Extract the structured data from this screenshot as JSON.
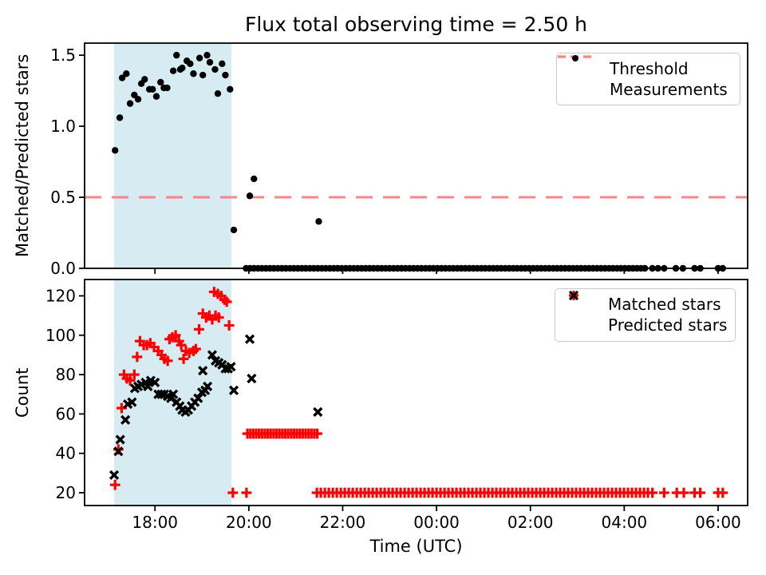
{
  "figure": {
    "title": "Flux total observing time = 2.50 h",
    "time_note": "x values are decimal hours UTC; values >= 24 are past midnight"
  },
  "colors": {
    "measurement": "#000000",
    "threshold": "#fb8585",
    "matched": "#ff0000",
    "predicted": "#000000",
    "observing_window_fill": "#add8e6",
    "spine": "#000000",
    "legend_border": "#cccccc"
  },
  "legend_top": {
    "items": [
      {
        "label": "Threshold"
      },
      {
        "label": "Measurements"
      }
    ]
  },
  "legend_bottom": {
    "items": [
      {
        "label": "Matched stars"
      },
      {
        "label": "Predicted stars"
      }
    ]
  },
  "chart_data": [
    {
      "type": "scatter",
      "title": "Flux total observing time = 2.50 h",
      "ylabel": "Matched/Predicted stars",
      "xlim": [
        16.5,
        30.63
      ],
      "ylim": [
        0,
        1.585
      ],
      "grid": false,
      "legend_position": "upper right",
      "xticks": {
        "hours": [
          18,
          20,
          22,
          24,
          26,
          28,
          30
        ],
        "labels": [
          "18:00",
          "20:00",
          "22:00",
          "00:00",
          "02:00",
          "04:00",
          "06:00"
        ],
        "show_labels": false
      },
      "yticks": {
        "values": [
          0.0,
          0.5,
          1.0,
          1.5
        ],
        "labels": [
          "0.0",
          "0.5",
          "1.0",
          "1.5"
        ]
      },
      "threshold_value": 0.5,
      "observing_window_hours": [
        17.13,
        19.63
      ],
      "series": [
        {
          "name": "Measurements",
          "marker": "dot",
          "color": "#000000",
          "points": [
            [
              17.15,
              0.83
            ],
            [
              17.25,
              1.06
            ],
            [
              17.3,
              1.34
            ],
            [
              17.39,
              1.37
            ],
            [
              17.47,
              1.16
            ],
            [
              17.56,
              1.22
            ],
            [
              17.64,
              1.19
            ],
            [
              17.71,
              1.3
            ],
            [
              17.78,
              1.33
            ],
            [
              17.88,
              1.26
            ],
            [
              17.95,
              1.26
            ],
            [
              18.03,
              1.21
            ],
            [
              18.12,
              1.31
            ],
            [
              18.19,
              1.27
            ],
            [
              18.26,
              1.27
            ],
            [
              18.39,
              1.39
            ],
            [
              18.46,
              1.5
            ],
            [
              18.54,
              1.4
            ],
            [
              18.58,
              1.41
            ],
            [
              18.68,
              1.46
            ],
            [
              18.75,
              1.44
            ],
            [
              18.82,
              1.37
            ],
            [
              18.95,
              1.48
            ],
            [
              19.02,
              1.36
            ],
            [
              19.11,
              1.5
            ],
            [
              19.17,
              1.45
            ],
            [
              19.28,
              1.4
            ],
            [
              19.34,
              1.23
            ],
            [
              19.43,
              1.44
            ],
            [
              19.5,
              1.36
            ],
            [
              19.6,
              1.26
            ],
            [
              19.68,
              0.27
            ],
            [
              20.02,
              0.51
            ],
            [
              20.11,
              0.63
            ],
            [
              21.49,
              0.33
            ]
          ],
          "runs": [
            {
              "start": 19.94,
              "end": 28.47,
              "step": 0.085,
              "value": 0.0
            }
          ],
          "extra_points": [
            [
              28.6,
              0.0
            ],
            [
              28.72,
              0.0
            ],
            [
              28.85,
              0.0
            ],
            [
              29.1,
              0.0
            ],
            [
              29.25,
              0.0
            ],
            [
              29.5,
              0.0
            ],
            [
              29.62,
              0.0
            ],
            [
              30.0,
              0.0
            ],
            [
              30.1,
              0.0
            ]
          ]
        }
      ]
    },
    {
      "type": "scatter",
      "ylabel": "Count",
      "xlabel": "Time (UTC)",
      "xlim": [
        16.5,
        30.63
      ],
      "ylim": [
        13.5,
        128.3
      ],
      "grid": false,
      "legend_position": "upper right",
      "xticks": {
        "hours": [
          18,
          20,
          22,
          24,
          26,
          28,
          30
        ],
        "labels": [
          "18:00",
          "20:00",
          "22:00",
          "00:00",
          "02:00",
          "04:00",
          "06:00"
        ],
        "show_labels": true
      },
      "yticks": {
        "values": [
          20,
          40,
          60,
          80,
          100,
          120
        ],
        "labels": [
          "20",
          "40",
          "60",
          "80",
          "100",
          "120"
        ]
      },
      "observing_window_hours": [
        17.13,
        19.63
      ],
      "series": [
        {
          "name": "Matched stars",
          "marker": "plus",
          "color": "#ff0000",
          "points": [
            [
              17.15,
              24
            ],
            [
              17.22,
              42
            ],
            [
              17.29,
              63
            ],
            [
              17.34,
              80
            ],
            [
              17.4,
              78
            ],
            [
              17.47,
              77
            ],
            [
              17.56,
              80
            ],
            [
              17.62,
              89
            ],
            [
              17.68,
              97
            ],
            [
              17.76,
              95
            ],
            [
              17.83,
              95
            ],
            [
              17.9,
              96
            ],
            [
              17.98,
              94
            ],
            [
              18.07,
              92
            ],
            [
              18.14,
              90
            ],
            [
              18.2,
              88
            ],
            [
              18.27,
              87
            ],
            [
              18.31,
              98
            ],
            [
              18.37,
              99
            ],
            [
              18.44,
              100
            ],
            [
              18.51,
              97
            ],
            [
              18.56,
              95
            ],
            [
              18.61,
              88
            ],
            [
              18.66,
              92
            ],
            [
              18.73,
              91
            ],
            [
              18.82,
              92
            ],
            [
              18.87,
              93
            ],
            [
              18.94,
              103
            ],
            [
              19.02,
              111
            ],
            [
              19.09,
              109
            ],
            [
              19.16,
              110
            ],
            [
              19.22,
              108
            ],
            [
              19.29,
              110
            ],
            [
              19.36,
              109
            ],
            [
              19.26,
              122
            ],
            [
              19.34,
              121
            ],
            [
              19.41,
              120
            ],
            [
              19.48,
              118
            ],
            [
              19.53,
              117
            ],
            [
              19.58,
              105
            ],
            [
              19.66,
              20
            ],
            [
              19.95,
              20
            ]
          ],
          "runs": [
            {
              "start": 19.97,
              "end": 21.47,
              "step": 0.062,
              "value": 50
            },
            {
              "start": 21.45,
              "end": 28.47,
              "step": 0.085,
              "value": 20
            }
          ],
          "extra_points": [
            [
              28.6,
              20
            ],
            [
              28.85,
              20
            ],
            [
              29.12,
              20
            ],
            [
              29.27,
              20
            ],
            [
              29.5,
              20
            ],
            [
              29.62,
              20
            ],
            [
              30.0,
              20
            ],
            [
              30.1,
              20
            ]
          ]
        },
        {
          "name": "Predicted stars",
          "marker": "x",
          "color": "#000000",
          "points": [
            [
              17.13,
              29
            ],
            [
              17.22,
              41
            ],
            [
              17.26,
              47
            ],
            [
              17.37,
              57
            ],
            [
              17.42,
              65
            ],
            [
              17.51,
              66
            ],
            [
              17.57,
              73
            ],
            [
              17.64,
              74
            ],
            [
              17.71,
              75
            ],
            [
              17.8,
              76
            ],
            [
              17.85,
              74
            ],
            [
              17.91,
              77
            ],
            [
              18.0,
              76
            ],
            [
              18.07,
              70
            ],
            [
              18.14,
              70
            ],
            [
              18.2,
              70
            ],
            [
              18.27,
              69
            ],
            [
              18.34,
              68
            ],
            [
              18.39,
              70
            ],
            [
              18.46,
              66
            ],
            [
              18.53,
              64
            ],
            [
              18.58,
              62
            ],
            [
              18.65,
              61
            ],
            [
              18.71,
              62
            ],
            [
              18.78,
              64
            ],
            [
              18.85,
              66
            ],
            [
              18.92,
              68
            ],
            [
              19.0,
              71
            ],
            [
              19.02,
              82
            ],
            [
              19.07,
              72
            ],
            [
              19.12,
              74
            ],
            [
              19.22,
              90
            ],
            [
              19.29,
              87
            ],
            [
              19.36,
              86
            ],
            [
              19.43,
              85
            ],
            [
              19.5,
              83
            ],
            [
              19.56,
              83
            ],
            [
              19.62,
              84
            ],
            [
              19.68,
              72
            ],
            [
              20.02,
              98
            ],
            [
              20.06,
              78
            ],
            [
              21.47,
              61
            ]
          ],
          "runs": [],
          "extra_points": []
        }
      ]
    }
  ]
}
